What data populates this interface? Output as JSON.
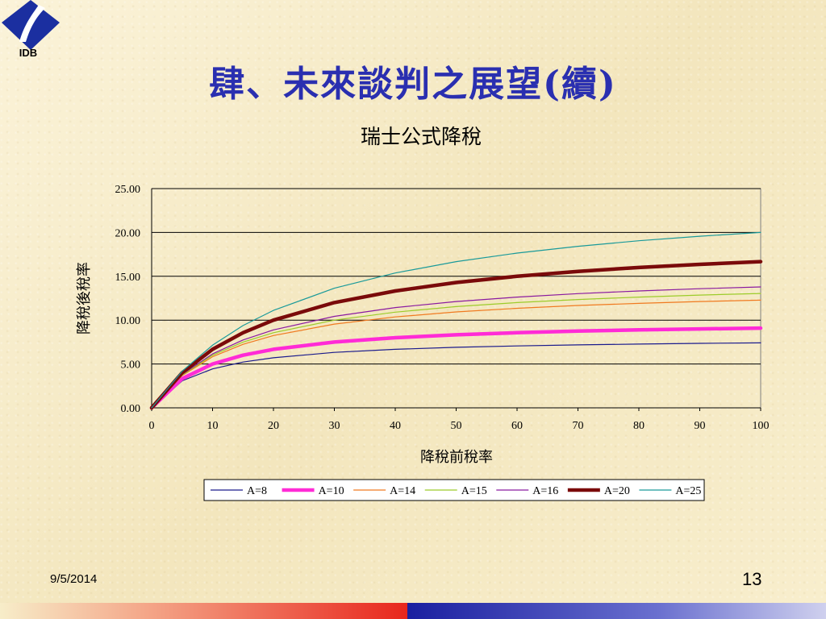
{
  "logo": {
    "text": "IDB"
  },
  "slide": {
    "title": "肆、未來談判之展望(續)",
    "date": "9/5/2014",
    "page": "13"
  },
  "colors": {
    "title": "#2a2fb0",
    "footer_red": "#e8261c",
    "footer_blue": "#1a1fa0"
  },
  "chart_data": {
    "type": "line",
    "title": "瑞士公式降稅",
    "xlabel": "降稅前稅率",
    "ylabel": "降稅後稅率",
    "xlim": [
      0,
      100
    ],
    "ylim": [
      0,
      25
    ],
    "xticks": [
      0,
      10,
      20,
      30,
      40,
      50,
      60,
      70,
      80,
      90,
      100
    ],
    "yticks": [
      "0.00",
      "5.00",
      "10.00",
      "15.00",
      "20.00",
      "25.00"
    ],
    "grid": "horizontal",
    "legend_position": "bottom",
    "formula": "y = A*x/(A+x)",
    "x": [
      0,
      5,
      10,
      15,
      20,
      30,
      40,
      50,
      60,
      70,
      80,
      90,
      100
    ],
    "series": [
      {
        "name": "A=8",
        "color": "#1a1a8c",
        "width": 1.2,
        "values": [
          0,
          3.08,
          4.44,
          5.22,
          5.71,
          6.32,
          6.67,
          6.9,
          7.06,
          7.18,
          7.27,
          7.35,
          7.41
        ]
      },
      {
        "name": "A=10",
        "color": "#ff2bd6",
        "width": 4.5,
        "values": [
          0,
          3.33,
          5.0,
          6.0,
          6.67,
          7.5,
          8.0,
          8.33,
          8.57,
          8.75,
          8.89,
          9.0,
          9.09
        ]
      },
      {
        "name": "A=14",
        "color": "#f07a20",
        "width": 1.2,
        "values": [
          0,
          3.68,
          5.83,
          7.24,
          8.24,
          9.55,
          10.37,
          10.94,
          11.35,
          11.67,
          11.91,
          12.12,
          12.28
        ]
      },
      {
        "name": "A=15",
        "color": "#9ccc2a",
        "width": 1.2,
        "values": [
          0,
          3.75,
          6.0,
          7.5,
          8.57,
          10.0,
          10.91,
          11.54,
          12.0,
          12.35,
          12.63,
          12.86,
          13.04
        ]
      },
      {
        "name": "A=16",
        "color": "#8a1aa0",
        "width": 1.2,
        "values": [
          0,
          3.81,
          6.15,
          7.74,
          8.89,
          10.43,
          11.43,
          12.12,
          12.63,
          13.02,
          13.33,
          13.58,
          13.79
        ]
      },
      {
        "name": "A=20",
        "color": "#7a0a0a",
        "width": 4.5,
        "values": [
          0,
          4.0,
          6.67,
          8.57,
          10.0,
          12.0,
          13.33,
          14.29,
          15.0,
          15.56,
          16.0,
          16.36,
          16.67
        ]
      },
      {
        "name": "A=25",
        "color": "#1a9a9a",
        "width": 1.2,
        "values": [
          0,
          4.17,
          7.14,
          9.38,
          11.11,
          13.64,
          15.38,
          16.67,
          17.65,
          18.42,
          19.05,
          19.57,
          20.0
        ]
      }
    ]
  }
}
